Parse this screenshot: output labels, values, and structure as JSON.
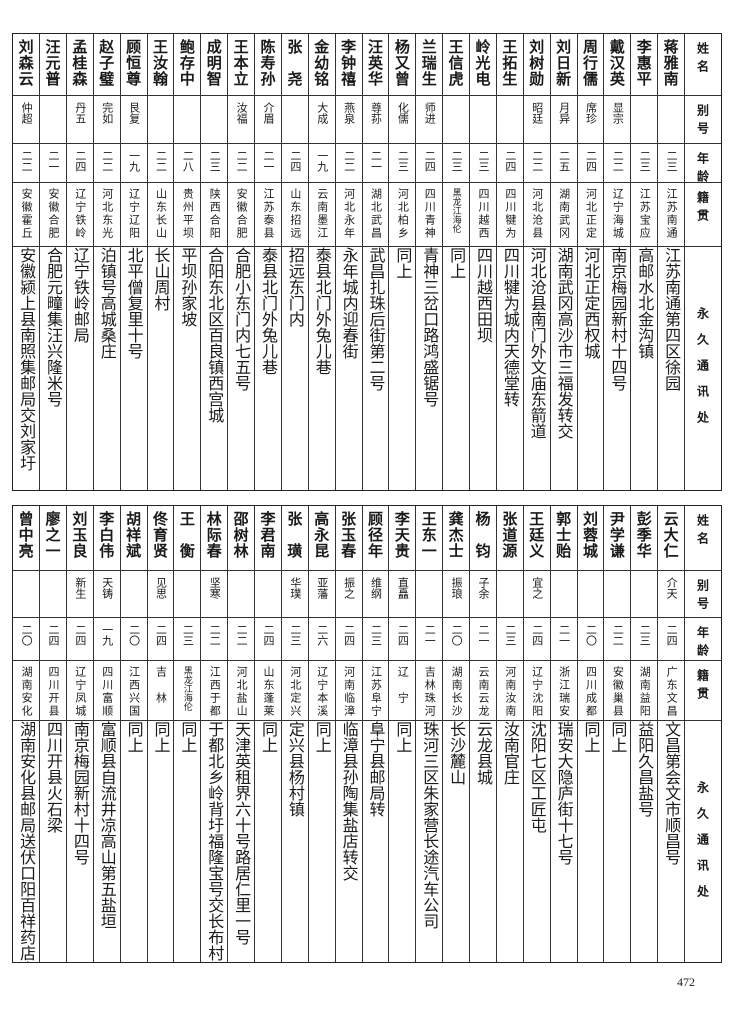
{
  "headers": {
    "name": "姓名",
    "alias": "别号",
    "age": "年龄",
    "origin": "籍贯",
    "address": "永久通讯处"
  },
  "tables": [
    {
      "rows": [
        {
          "name": "蒋雅南",
          "alias": "",
          "age": "二三",
          "origin": "江苏南通",
          "address": "江苏南通第四区徐园"
        },
        {
          "name": "李惠平",
          "alias": "",
          "age": "二三",
          "origin": "江苏宝应",
          "address": "高邮水北金沟镇"
        },
        {
          "name": "戴汉英",
          "alias": "显宗",
          "age": "二二",
          "origin": "辽宁海城",
          "address": "南京梅园新村十四号"
        },
        {
          "name": "周行儒",
          "alias": "席珍",
          "age": "二四",
          "origin": "河北正定",
          "address": "河北正定西权城"
        },
        {
          "name": "刘日新",
          "alias": "月异",
          "age": "二五",
          "origin": "湖南武冈",
          "address": "湖南武冈高沙市三福发转交"
        },
        {
          "name": "刘树勋",
          "alias": "昭廷",
          "age": "二二",
          "origin": "河北沧县",
          "address": "河北沧县南门外文庙东箭道"
        },
        {
          "name": "王拓生",
          "alias": "",
          "age": "二四",
          "origin": "四川犍为",
          "address": "四川犍为城内天德堂转"
        },
        {
          "name": "岭光电",
          "alias": "",
          "age": "二三",
          "origin": "四川越西",
          "address": "四川越西田坝"
        },
        {
          "name": "王信虎",
          "alias": "",
          "age": "二三",
          "origin": "黑龙江海伦",
          "address": "同上"
        },
        {
          "name": "兰瑞生",
          "alias": "师进",
          "age": "二四",
          "origin": "四川青神",
          "address": "青神三岔口路鸿盛锯号"
        },
        {
          "name": "杨又曾",
          "alias": "化儒",
          "age": "二三",
          "origin": "河北柏乡",
          "address": "同上"
        },
        {
          "name": "汪英华",
          "alias": "尊荪",
          "age": "二一",
          "origin": "湖北武昌",
          "address": "武昌扎珠后街第二号"
        },
        {
          "name": "李钟禧",
          "alias": "燕泉",
          "age": "二二",
          "origin": "河北永年",
          "address": "永年城内迎春街"
        },
        {
          "name": "金幼铭",
          "alias": "大成",
          "age": "一九",
          "origin": "云南墨江",
          "address": "泰县北门外兔儿巷"
        },
        {
          "name": "张　尧",
          "alias": "",
          "age": "二四",
          "origin": "山东招远",
          "address": "招远东门内"
        },
        {
          "name": "陈寿孙",
          "alias": "介眉",
          "age": "二一",
          "origin": "江苏泰县",
          "address": "泰县北门外兔儿巷"
        },
        {
          "name": "王本立",
          "alias": "汝福",
          "age": "二二",
          "origin": "安徽合肥",
          "address": "合肥小东门内七五号"
        },
        {
          "name": "成明智",
          "alias": "",
          "age": "二三",
          "origin": "陕西合阳",
          "address": "合阳东北区百良镇西宫城"
        },
        {
          "name": "鲍存中",
          "alias": "",
          "age": "二八",
          "origin": "贵州平坝",
          "address": "平坝孙家坡"
        },
        {
          "name": "王汝翰",
          "alias": "",
          "age": "二二",
          "origin": "山东长山",
          "address": "长山周村"
        },
        {
          "name": "顾恒尊",
          "alias": "艮复",
          "age": "一九",
          "origin": "辽宁辽阳",
          "address": "北平僧复里十号"
        },
        {
          "name": "赵子璧",
          "alias": "完如",
          "age": "二二",
          "origin": "河北东光",
          "address": "泊镇号高城桑庄"
        },
        {
          "name": "孟桂森",
          "alias": "丹五",
          "age": "二四",
          "origin": "辽宁铁岭",
          "address": "辽宁铁岭邮局"
        },
        {
          "name": "汪元普",
          "alias": "",
          "age": "二一",
          "origin": "安徽合肥",
          "address": "合肥元疃集汪兴隆米号"
        },
        {
          "name": "刘森云",
          "alias": "仲超",
          "age": "二二",
          "origin": "安徽霍丘",
          "address": "安徽颍上县南照集邮局交刘家圩"
        }
      ]
    },
    {
      "rows": [
        {
          "name": "云大仁",
          "alias": "介天",
          "age": "二四",
          "origin": "广东文昌",
          "address": "文昌第会文市顺昌号"
        },
        {
          "name": "彭季华",
          "alias": "",
          "age": "二三",
          "origin": "湖南益阳",
          "address": "益阳久昌盐号"
        },
        {
          "name": "尹学谦",
          "alias": "",
          "age": "二二",
          "origin": "安徽巢县",
          "address": "同上"
        },
        {
          "name": "刘蓉城",
          "alias": "",
          "age": "二〇",
          "origin": "四川成都",
          "address": "同上"
        },
        {
          "name": "郭士贻",
          "alias": "",
          "age": "二一",
          "origin": "浙江瑞安",
          "address": "瑞安大隐庐街十七号"
        },
        {
          "name": "王廷义",
          "alias": "宜之",
          "age": "二四",
          "origin": "辽宁沈阳",
          "address": "沈阳七区工匠屯"
        },
        {
          "name": "张道源",
          "alias": "",
          "age": "二三",
          "origin": "河南汝南",
          "address": "汝南官庄"
        },
        {
          "name": "杨　钧",
          "alias": "子余",
          "age": "二一",
          "origin": "云南云龙",
          "address": "云龙县城"
        },
        {
          "name": "龚杰士",
          "alias": "振琅",
          "age": "二〇",
          "origin": "湖南长沙",
          "address": "长沙麓山"
        },
        {
          "name": "王东一",
          "alias": "",
          "age": "二一",
          "origin": "吉林珠河",
          "address": "珠河三区朱家营长途汽车公司"
        },
        {
          "name": "李天贵",
          "alias": "直矗",
          "age": "二四",
          "origin": "辽　宁",
          "address": "同上"
        },
        {
          "name": "顾径年",
          "alias": "维纲",
          "age": "二三",
          "origin": "江苏阜宁",
          "address": "阜宁县邮局转"
        },
        {
          "name": "张玉春",
          "alias": "振之",
          "age": "二四",
          "origin": "河南临漳",
          "address": "临漳县孙陶集盐店转交"
        },
        {
          "name": "高永昆",
          "alias": "亚藩",
          "age": "二六",
          "origin": "辽宁本溪",
          "address": "同上"
        },
        {
          "name": "张　璜",
          "alias": "华璞",
          "age": "二三",
          "origin": "河北定兴",
          "address": "定兴县杨村镇"
        },
        {
          "name": "李君南",
          "alias": "",
          "age": "二四",
          "origin": "山东蓬莱",
          "address": "同上"
        },
        {
          "name": "邵树林",
          "alias": "",
          "age": "二二",
          "origin": "河北盐山",
          "address": "天津英租界六十号路居仁里一号"
        },
        {
          "name": "林际春",
          "alias": "坚寒",
          "age": "二二",
          "origin": "江西于都",
          "address": "于都北乡岭背圩福隆宝号交长布村"
        },
        {
          "name": "王　衡",
          "alias": "",
          "age": "二三",
          "origin": "黑龙江海伦",
          "address": "同上"
        },
        {
          "name": "佟育贤",
          "alias": "见思",
          "age": "二四",
          "origin": "吉　林",
          "address": "同上"
        },
        {
          "name": "胡祥斌",
          "alias": "",
          "age": "二〇",
          "origin": "江西兴国",
          "address": "同上"
        },
        {
          "name": "李白伟",
          "alias": "天铸",
          "age": "一九",
          "origin": "四川富顺",
          "address": "富顺县自流井凉高山第五盐垣"
        },
        {
          "name": "刘玉良",
          "alias": "新生",
          "age": "二四",
          "origin": "辽宁凤城",
          "address": "南京梅园新村十四号"
        },
        {
          "name": "廖之一",
          "alias": "",
          "age": "二四",
          "origin": "四川开县",
          "address": "四川开县火石梁"
        },
        {
          "name": "曾中亮",
          "alias": "",
          "age": "二〇",
          "origin": "湖南安化",
          "address": "湖南安化县邮局送伏口阳百祥药店交"
        }
      ]
    }
  ],
  "page_number": "472"
}
